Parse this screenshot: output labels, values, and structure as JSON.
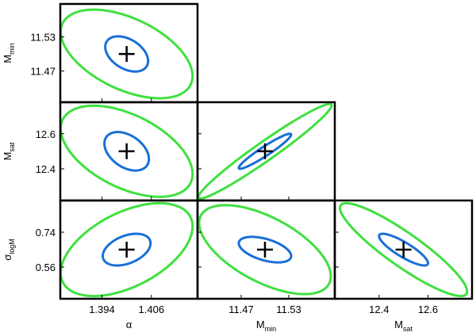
{
  "chart_data": {
    "type": "corner",
    "parameters": [
      {
        "name": "α",
        "fiducial": 1.4,
        "lim": [
          1.3839,
          1.4172
        ],
        "ticks": [
          1.394,
          1.406
        ]
      },
      {
        "name": "M",
        "sub": "min",
        "fiducial": 11.5,
        "lim": [
          11.415,
          11.588
        ],
        "ticks": [
          11.47,
          11.53
        ]
      },
      {
        "name": "M",
        "sub": "sat",
        "fiducial": 12.5,
        "lim": [
          12.219,
          12.78
        ],
        "ticks": [
          12.4,
          12.6
        ]
      },
      {
        "name": "σ",
        "sub": "logM",
        "fiducial": 0.65,
        "lim": [
          0.396,
          0.904
        ],
        "ticks": [
          0.56,
          0.74
        ]
      }
    ],
    "contour_colors": [
      "#1a6fd6",
      "#3fe03f"
    ],
    "panels": [
      {
        "x": 0,
        "y": 1,
        "ellipses": [
          {
            "sx": 0.0052,
            "sy": 0.031,
            "rho": -0.4
          },
          {
            "sx": 0.016,
            "sy": 0.078,
            "rho": -0.5
          }
        ]
      },
      {
        "x": 0,
        "y": 2,
        "ellipses": [
          {
            "sx": 0.0054,
            "sy": 0.11,
            "rho": -0.4
          },
          {
            "sx": 0.016,
            "sy": 0.26,
            "rho": -0.5
          }
        ]
      },
      {
        "x": 1,
        "y": 2,
        "ellipses": [
          {
            "sx": 0.033,
            "sy": 0.1,
            "rho": 0.95
          },
          {
            "sx": 0.084,
            "sy": 0.27,
            "rho": 0.97
          }
        ]
      },
      {
        "x": 0,
        "y": 3,
        "ellipses": [
          {
            "sx": 0.0058,
            "sy": 0.082,
            "rho": 0.4
          },
          {
            "sx": 0.016,
            "sy": 0.24,
            "rho": 0.5
          }
        ]
      },
      {
        "x": 1,
        "y": 3,
        "ellipses": [
          {
            "sx": 0.033,
            "sy": 0.066,
            "rho": -0.5
          },
          {
            "sx": 0.083,
            "sy": 0.23,
            "rho": -0.6
          }
        ]
      },
      {
        "x": 2,
        "y": 3,
        "ellipses": [
          {
            "sx": 0.1,
            "sy": 0.082,
            "rho": -0.85
          },
          {
            "sx": 0.26,
            "sy": 0.24,
            "rho": -0.9
          }
        ]
      }
    ]
  }
}
